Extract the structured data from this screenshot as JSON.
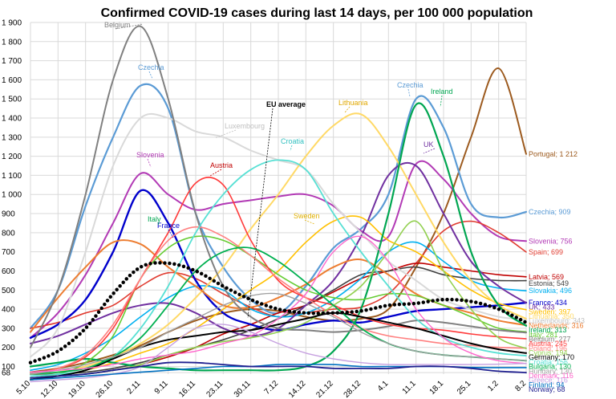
{
  "chart_data": {
    "type": "line",
    "title": "Confirmed COVID-19 cases during last 14 days, per 100 000 population",
    "xlabel": "",
    "ylabel": "",
    "ylim": [
      60,
      1900
    ],
    "grid": true,
    "yticks": [
      {
        "v": 68,
        "label": "68"
      },
      {
        "v": 100,
        "label": "100"
      },
      {
        "v": 200,
        "label": "200"
      },
      {
        "v": 300,
        "label": "300"
      },
      {
        "v": 400,
        "label": "400"
      },
      {
        "v": 500,
        "label": "500"
      },
      {
        "v": 600,
        "label": "600"
      },
      {
        "v": 700,
        "label": "700"
      },
      {
        "v": 800,
        "label": "800"
      },
      {
        "v": 900,
        "label": "900"
      },
      {
        "v": 1000,
        "label": "1 000"
      },
      {
        "v": 1100,
        "label": "1 100"
      },
      {
        "v": 1200,
        "label": "1 200"
      },
      {
        "v": 1300,
        "label": "1 300"
      },
      {
        "v": 1400,
        "label": "1 400"
      },
      {
        "v": 1500,
        "label": "1 500"
      },
      {
        "v": 1600,
        "label": "1 600"
      },
      {
        "v": 1700,
        "label": "1 700"
      },
      {
        "v": 1800,
        "label": "1 800"
      },
      {
        "v": 1900,
        "label": "1 900"
      }
    ],
    "categories": [
      "5.10",
      "12.10",
      "19.10",
      "26.10",
      "2.11",
      "9.11",
      "16.11",
      "23.11",
      "30.11",
      "7.12",
      "14.12",
      "21.12",
      "28.12",
      "4.1",
      "11.1",
      "18.1",
      "25.1",
      "1.2",
      "8.2"
    ],
    "series": [
      {
        "name": "Portugal",
        "label": "Portugal; 1 212",
        "color": "#9C5A1E",
        "width": 2,
        "values": [
          70,
          90,
          120,
          160,
          210,
          280,
          340,
          380,
          400,
          390,
          360,
          340,
          350,
          400,
          620,
          900,
          1300,
          1660,
          1212
        ]
      },
      {
        "name": "Czechia",
        "label": "Czechia; 909",
        "color": "#5B9BD5",
        "width": 2.2,
        "values": [
          300,
          500,
          940,
          1300,
          1570,
          1450,
          900,
          620,
          450,
          380,
          520,
          720,
          820,
          1000,
          1500,
          1350,
          950,
          880,
          909
        ]
      },
      {
        "name": "Slovenia",
        "label": "Slovenia; 756",
        "color": "#B23AB5",
        "width": 2,
        "values": [
          250,
          380,
          580,
          850,
          1110,
          1000,
          920,
          950,
          970,
          990,
          1000,
          940,
          810,
          780,
          1160,
          1080,
          900,
          780,
          756
        ]
      },
      {
        "name": "Spain",
        "label": "Spain; 699",
        "color": "#E03C31",
        "width": 1.6,
        "values": [
          300,
          330,
          380,
          420,
          520,
          590,
          560,
          480,
          410,
          360,
          380,
          400,
          410,
          480,
          640,
          810,
          860,
          800,
          699
        ]
      },
      {
        "name": "Latvia",
        "label": "Latvia; 569",
        "color": "#C00000",
        "width": 1.6,
        "values": [
          40,
          50,
          60,
          80,
          110,
          150,
          200,
          270,
          320,
          380,
          420,
          490,
          560,
          600,
          640,
          620,
          600,
          580,
          569
        ]
      },
      {
        "name": "Estonia",
        "label": "Estonia; 549",
        "color": "#404040",
        "width": 1.6,
        "values": [
          60,
          60,
          70,
          90,
          120,
          160,
          200,
          240,
          290,
          350,
          420,
          500,
          580,
          600,
          620,
          580,
          560,
          550,
          549
        ]
      },
      {
        "name": "Slovakia",
        "label": "Slovakia; 496",
        "color": "#00B0F0",
        "width": 1.6,
        "values": [
          80,
          110,
          170,
          250,
          360,
          460,
          520,
          500,
          400,
          360,
          380,
          450,
          560,
          700,
          750,
          650,
          550,
          510,
          496
        ]
      },
      {
        "name": "France",
        "label": "France; 434",
        "color": "#0000CC",
        "width": 2.4,
        "values": [
          250,
          320,
          450,
          700,
          1020,
          850,
          550,
          380,
          320,
          290,
          320,
          340,
          330,
          360,
          390,
          400,
          410,
          420,
          434
        ]
      },
      {
        "name": "UK",
        "label": "UK; 433",
        "color": "#7030A0",
        "width": 2,
        "values": [
          220,
          260,
          320,
          380,
          420,
          430,
          380,
          300,
          260,
          300,
          420,
          550,
          780,
          1100,
          1150,
          900,
          650,
          520,
          433
        ]
      },
      {
        "name": "Sweden",
        "label": "Sweden; 397",
        "color": "#FFC000",
        "width": 1.6,
        "values": [
          40,
          50,
          80,
          120,
          170,
          220,
          300,
          400,
          500,
          600,
          750,
          860,
          880,
          760,
          700,
          600,
          500,
          430,
          397
        ]
      },
      {
        "name": "Luxembourg",
        "label": "Luxembourg; 343",
        "color": "#D9D9D9",
        "width": 2,
        "values": [
          150,
          300,
          700,
          1150,
          1400,
          1400,
          1330,
          1300,
          1230,
          1180,
          1130,
          950,
          800,
          650,
          550,
          450,
          400,
          360,
          343
        ]
      },
      {
        "name": "Lithuania",
        "label": "Lithuania; 350",
        "color": "#FFD966",
        "width": 2,
        "values": [
          60,
          70,
          100,
          150,
          220,
          320,
          460,
          620,
          820,
          1000,
          1200,
          1360,
          1420,
          1250,
          1000,
          750,
          550,
          420,
          350
        ]
      },
      {
        "name": "Netherlands",
        "label": "Netherlands; 316",
        "color": "#ED7D31",
        "width": 2,
        "values": [
          280,
          460,
          620,
          750,
          740,
          620,
          520,
          420,
          410,
          460,
          530,
          620,
          660,
          580,
          480,
          420,
          380,
          340,
          316
        ]
      },
      {
        "name": "Ireland",
        "label": "Ireland; 313",
        "color": "#00A651",
        "width": 2.2,
        "values": [
          100,
          120,
          140,
          120,
          100,
          90,
          80,
          80,
          80,
          80,
          100,
          180,
          400,
          900,
          1470,
          1200,
          700,
          420,
          313
        ]
      },
      {
        "name": "Italy",
        "label": "Italy; 281",
        "color": "#66CC33",
        "width": 1.6,
        "values": [
          40,
          60,
          120,
          260,
          560,
          720,
          780,
          760,
          680,
          580,
          500,
          460,
          450,
          480,
          470,
          420,
          360,
          300,
          281
        ]
      },
      {
        "name": "Belgium",
        "label": "Belgium; 277",
        "color": "#808080",
        "width": 2,
        "values": [
          200,
          500,
          1000,
          1600,
          1880,
          1500,
          900,
          520,
          360,
          300,
          290,
          280,
          290,
          310,
          340,
          330,
          310,
          290,
          277
        ]
      },
      {
        "name": "Austria",
        "label": "Austria; 245",
        "color": "#FF3B3B",
        "width": 1.6,
        "values": [
          60,
          90,
          150,
          300,
          560,
          800,
          1060,
          1050,
          760,
          550,
          460,
          420,
          360,
          320,
          300,
          290,
          270,
          255,
          245
        ]
      },
      {
        "name": "Poland",
        "label": "Poland; 196",
        "color": "#FF8080",
        "width": 1.6,
        "values": [
          60,
          90,
          160,
          320,
          560,
          760,
          830,
          780,
          680,
          560,
          460,
          370,
          300,
          260,
          240,
          220,
          210,
          200,
          196
        ]
      },
      {
        "name": "Croatia",
        "label": "Croatia; 156",
        "color": "#57E0D4",
        "width": 1.8,
        "values": [
          50,
          60,
          80,
          150,
          300,
          520,
          800,
          1000,
          1130,
          1180,
          1130,
          900,
          700,
          520,
          350,
          250,
          200,
          170,
          156
        ]
      },
      {
        "name": "Cyprus",
        "label": "Cyprus; 194",
        "color": "#92D050",
        "width": 1.6,
        "values": [
          40,
          50,
          60,
          80,
          110,
          160,
          200,
          230,
          250,
          280,
          330,
          420,
          520,
          700,
          860,
          600,
          400,
          250,
          194
        ]
      },
      {
        "name": "Germany",
        "label": "Germany; 170",
        "color": "#000000",
        "width": 2,
        "values": [
          30,
          50,
          80,
          140,
          200,
          240,
          260,
          280,
          290,
          320,
          350,
          380,
          360,
          330,
          300,
          260,
          220,
          190,
          170
        ]
      },
      {
        "name": "Bulgaria",
        "label": "Bulgaria; 130",
        "color": "#00B050",
        "width": 1.8,
        "values": [
          60,
          70,
          90,
          150,
          250,
          420,
          600,
          700,
          720,
          650,
          540,
          420,
          300,
          220,
          180,
          160,
          150,
          140,
          130
        ]
      },
      {
        "name": "Hungary",
        "label": "Hungary; 130",
        "color": "#A0A0A0",
        "width": 1.4,
        "values": [
          60,
          80,
          110,
          150,
          200,
          280,
          350,
          420,
          470,
          480,
          430,
          360,
          280,
          220,
          180,
          160,
          150,
          140,
          130
        ]
      },
      {
        "name": "Denmark",
        "label": "Denmark; 116",
        "color": "#FF66CC",
        "width": 1.4,
        "values": [
          70,
          80,
          90,
          110,
          140,
          160,
          180,
          220,
          260,
          350,
          480,
          700,
          780,
          650,
          400,
          250,
          170,
          130,
          116
        ]
      },
      {
        "name": "Greece",
        "label": "Greece; 116",
        "color": "#C6A0E0",
        "width": 1.4,
        "values": [
          20,
          30,
          40,
          60,
          100,
          200,
          300,
          320,
          280,
          220,
          170,
          140,
          120,
          110,
          110,
          110,
          110,
          112,
          116
        ]
      },
      {
        "name": "Finland",
        "label": "Finland; 94",
        "color": "#0070C0",
        "width": 1.6,
        "values": [
          30,
          40,
          50,
          60,
          70,
          80,
          90,
          100,
          100,
          110,
          110,
          110,
          100,
          100,
          100,
          100,
          95,
          94,
          94
        ]
      },
      {
        "name": "Norway",
        "label": "Norway; 68",
        "color": "#1F1F8F",
        "width": 1.8,
        "values": [
          40,
          50,
          60,
          80,
          100,
          120,
          120,
          110,
          100,
          100,
          100,
          90,
          90,
          90,
          100,
          100,
          90,
          75,
          68
        ]
      },
      {
        "name": "EU average",
        "label": "EU average",
        "color": "#000000",
        "width": 3.6,
        "dotted": true,
        "values": [
          120,
          180,
          300,
          480,
          620,
          640,
          600,
          520,
          450,
          400,
          380,
          380,
          390,
          420,
          430,
          450,
          440,
          400,
          330
        ]
      }
    ],
    "annotations": [
      {
        "text": "Belgium",
        "color": "#808080",
        "series": "Belgium"
      },
      {
        "text": "Czechia",
        "color": "#5B9BD5",
        "series": "Czechia"
      },
      {
        "text": "Luxembourg",
        "color": "#BFBFBF",
        "series": "Luxembourg"
      },
      {
        "text": "Slovenia",
        "color": "#B23AB5",
        "series": "Slovenia"
      },
      {
        "text": "Austria",
        "color": "#C00000",
        "series": "Austria"
      },
      {
        "text": "France",
        "color": "#0000CC",
        "series": "France"
      },
      {
        "text": "Italy",
        "color": "#00A651",
        "series": "Italy"
      },
      {
        "text": "EU average",
        "color": "#000000",
        "series": "EU average"
      },
      {
        "text": "Croatia",
        "color": "#31C0C0",
        "series": "Croatia"
      },
      {
        "text": "Lithuania",
        "color": "#E0A800",
        "series": "Lithuania"
      },
      {
        "text": "Sweden",
        "color": "#E0B000",
        "series": "Sweden"
      },
      {
        "text": "Czechia",
        "color": "#5B9BD5",
        "series": "Czechia"
      },
      {
        "text": "Ireland",
        "color": "#00A651",
        "series": "Ireland"
      },
      {
        "text": "UK",
        "color": "#7030A0",
        "series": "UK"
      }
    ]
  }
}
